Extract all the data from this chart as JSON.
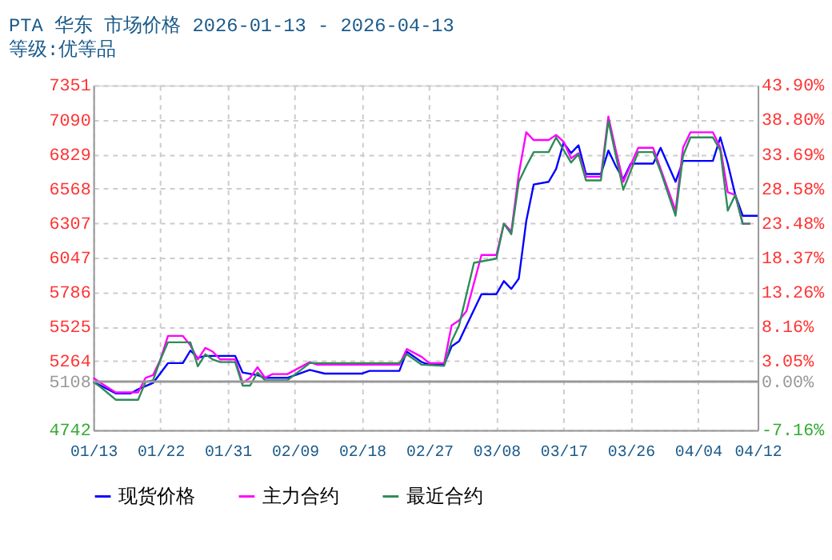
{
  "chart_data": {
    "type": "line",
    "title": "PTA 华东 市场价格 2026-01-13 - 2026-04-13",
    "subtitle": "等级:优等品",
    "xlim": [
      "2026-01-13",
      "2026-04-12"
    ],
    "xticks": [
      {
        "value": "2026-01-13",
        "label": "01/13"
      },
      {
        "value": "2026-01-22",
        "label": "01/22"
      },
      {
        "value": "2026-01-31",
        "label": "01/31"
      },
      {
        "value": "2026-02-09",
        "label": "02/09"
      },
      {
        "value": "2026-02-18",
        "label": "02/18"
      },
      {
        "value": "2026-02-27",
        "label": "02/27"
      },
      {
        "value": "2026-03-08",
        "label": "03/08"
      },
      {
        "value": "2026-03-17",
        "label": "03/17"
      },
      {
        "value": "2026-03-26",
        "label": "03/26"
      },
      {
        "value": "2026-04-04",
        "label": "04/04"
      },
      {
        "value": "2026-04-12",
        "label": "04/12"
      }
    ],
    "ylim": [
      4742,
      7351
    ],
    "yticks": [
      4742,
      5108,
      5264,
      5525,
      5786,
      6047,
      6307,
      6568,
      6829,
      7090,
      7351
    ],
    "y2lim": [
      -7.16,
      43.9
    ],
    "y2ticks": [
      {
        "value": -7.16,
        "label": "-7.16%"
      },
      {
        "value": 0,
        "label": "0.00%"
      },
      {
        "value": 3.05,
        "label": "3.05%"
      },
      {
        "value": 8.16,
        "label": "8.16%"
      },
      {
        "value": 13.26,
        "label": "13.26%"
      },
      {
        "value": 18.37,
        "label": "18.37%"
      },
      {
        "value": 23.48,
        "label": "23.48%"
      },
      {
        "value": 28.58,
        "label": "28.58%"
      },
      {
        "value": 33.69,
        "label": "33.69%"
      },
      {
        "value": 38.8,
        "label": "38.80%"
      },
      {
        "value": 43.9,
        "label": "43.90%"
      }
    ],
    "ref_lines": [
      {
        "axis": "y2",
        "value": 0,
        "color": "#999999"
      }
    ],
    "grid": true,
    "legend": "bottom",
    "marker": "none",
    "line_style": "solid",
    "series": [
      {
        "name": "现货价格",
        "color": "#0000ff",
        "x": [
          "2026-01-13",
          "2026-01-14",
          "2026-01-16",
          "2026-01-18",
          "2026-01-19",
          "2026-01-21",
          "2026-01-23",
          "2026-01-25",
          "2026-01-26",
          "2026-01-27",
          "2026-01-28",
          "2026-02-01",
          "2026-02-02",
          "2026-02-04",
          "2026-02-05",
          "2026-02-08",
          "2026-02-11",
          "2026-02-13",
          "2026-02-18",
          "2026-02-19",
          "2026-02-23",
          "2026-02-24",
          "2026-02-26",
          "2026-02-27",
          "2026-03-01",
          "2026-03-02",
          "2026-03-03",
          "2026-03-04",
          "2026-03-06",
          "2026-03-08",
          "2026-03-09",
          "2026-03-10",
          "2026-03-11",
          "2026-03-12",
          "2026-03-13",
          "2026-03-15",
          "2026-03-16",
          "2026-03-17",
          "2026-03-18",
          "2026-03-19",
          "2026-03-20",
          "2026-03-22",
          "2026-03-23",
          "2026-03-24",
          "2026-03-25",
          "2026-03-26",
          "2026-03-29",
          "2026-03-30",
          "2026-04-01",
          "2026-04-02",
          "2026-04-06",
          "2026-04-07",
          "2026-04-08",
          "2026-04-09",
          "2026-04-10",
          "2026-04-12"
        ],
        "values": [
          5106,
          5078,
          5019,
          5019,
          5050,
          5098,
          5248,
          5248,
          5343,
          5288,
          5303,
          5303,
          5177,
          5157,
          5137,
          5137,
          5197,
          5169,
          5169,
          5189,
          5189,
          5335,
          5256,
          5236,
          5236,
          5375,
          5414,
          5533,
          5770,
          5770,
          5869,
          5810,
          5888,
          6323,
          6600,
          6620,
          6718,
          6916,
          6837,
          6896,
          6679,
          6679,
          6857,
          6738,
          6639,
          6758,
          6758,
          6877,
          6620,
          6778,
          6778,
          6956,
          6758,
          6521,
          6363,
          6363
        ]
      },
      {
        "name": "主力合约",
        "color": "#ff00ff",
        "x": [
          "2026-01-13",
          "2026-01-14",
          "2026-01-16",
          "2026-01-19",
          "2026-01-20",
          "2026-01-21",
          "2026-01-22",
          "2026-01-23",
          "2026-01-25",
          "2026-01-26",
          "2026-01-27",
          "2026-01-28",
          "2026-01-29",
          "2026-01-30",
          "2026-02-01",
          "2026-02-02",
          "2026-02-03",
          "2026-02-04",
          "2026-02-05",
          "2026-02-06",
          "2026-02-08",
          "2026-02-11",
          "2026-02-12",
          "2026-02-23",
          "2026-02-24",
          "2026-02-26",
          "2026-02-27",
          "2026-03-01",
          "2026-03-02",
          "2026-03-03",
          "2026-03-04",
          "2026-03-06",
          "2026-03-08",
          "2026-03-09",
          "2026-03-10",
          "2026-03-11",
          "2026-03-12",
          "2026-03-13",
          "2026-03-15",
          "2026-03-16",
          "2026-03-17",
          "2026-03-18",
          "2026-03-19",
          "2026-03-20",
          "2026-03-22",
          "2026-03-23",
          "2026-03-24",
          "2026-03-25",
          "2026-03-27",
          "2026-03-29",
          "2026-04-01",
          "2026-04-02",
          "2026-04-03",
          "2026-04-06",
          "2026-04-07",
          "2026-04-08",
          "2026-04-09",
          "2026-04-10",
          "2026-04-11"
        ],
        "values": [
          5137,
          5098,
          5027,
          5027,
          5137,
          5157,
          5276,
          5454,
          5454,
          5383,
          5276,
          5363,
          5335,
          5276,
          5276,
          5098,
          5137,
          5217,
          5137,
          5165,
          5165,
          5256,
          5236,
          5236,
          5355,
          5295,
          5248,
          5248,
          5533,
          5572,
          5643,
          6066,
          6066,
          6303,
          6244,
          6679,
          6995,
          6936,
          6936,
          6975,
          6924,
          6798,
          6837,
          6659,
          6659,
          7114,
          6857,
          6620,
          6877,
          6877,
          6402,
          6877,
          6995,
          6995,
          6877,
          6541,
          6521,
          6303,
          6303
        ]
      },
      {
        "name": "最近合约",
        "color": "#2e8b57",
        "x": [
          "2026-01-13",
          "2026-01-14",
          "2026-01-16",
          "2026-01-19",
          "2026-01-20",
          "2026-01-21",
          "2026-01-22",
          "2026-01-23",
          "2026-01-26",
          "2026-01-27",
          "2026-01-28",
          "2026-01-29",
          "2026-01-30",
          "2026-02-01",
          "2026-02-02",
          "2026-02-03",
          "2026-02-04",
          "2026-02-05",
          "2026-02-08",
          "2026-02-11",
          "2026-02-23",
          "2026-02-24",
          "2026-02-26",
          "2026-03-01",
          "2026-03-02",
          "2026-03-03",
          "2026-03-05",
          "2026-03-08",
          "2026-03-09",
          "2026-03-10",
          "2026-03-11",
          "2026-03-12",
          "2026-03-13",
          "2026-03-15",
          "2026-03-16",
          "2026-03-18",
          "2026-03-19",
          "2026-03-20",
          "2026-03-22",
          "2026-03-23",
          "2026-03-24",
          "2026-03-25",
          "2026-03-27",
          "2026-03-29",
          "2026-03-30",
          "2026-04-01",
          "2026-04-02",
          "2026-04-03",
          "2026-04-06",
          "2026-04-07",
          "2026-04-08",
          "2026-04-09",
          "2026-04-10",
          "2026-04-11"
        ],
        "values": [
          5106,
          5066,
          4971,
          4971,
          5106,
          5118,
          5276,
          5406,
          5406,
          5224,
          5315,
          5276,
          5256,
          5256,
          5078,
          5078,
          5177,
          5118,
          5118,
          5248,
          5248,
          5315,
          5236,
          5228,
          5414,
          5533,
          6007,
          6039,
          6303,
          6224,
          6620,
          6738,
          6845,
          6845,
          6956,
          6766,
          6829,
          6631,
          6631,
          7082,
          6817,
          6560,
          6845,
          6845,
          6699,
          6363,
          6817,
          6956,
          6956,
          6857,
          6402,
          6521,
          6303,
          6303
        ]
      }
    ]
  }
}
